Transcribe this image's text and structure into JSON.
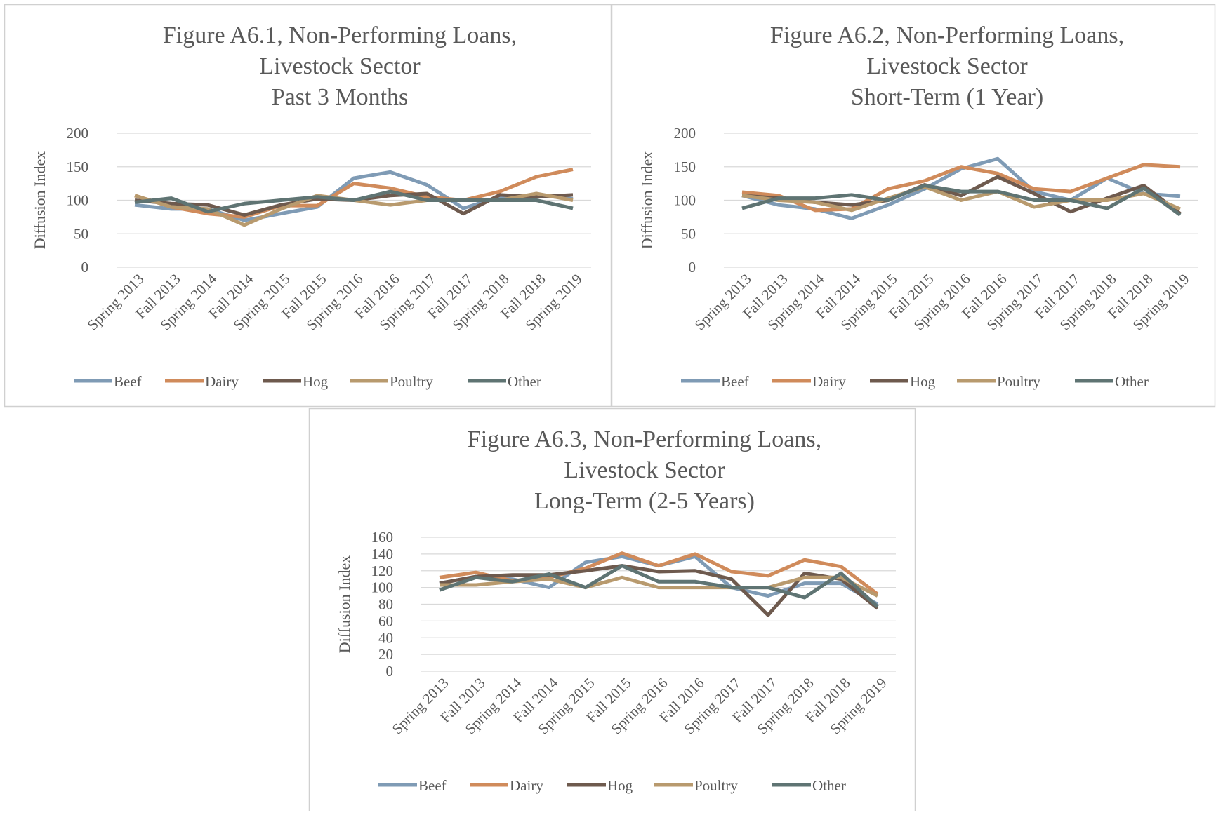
{
  "chart_data": [
    {
      "type": "line",
      "title": [
        "Figure A6.1, Non-Performing Loans,",
        "Livestock Sector",
        "Past 3 Months"
      ],
      "y_label": "Diffusion Index",
      "categories": [
        "Spring 2013",
        "Fall 2013",
        "Spring 2014",
        "Fall 2014",
        "Spring 2015",
        "Fall 2015",
        "Spring 2016",
        "Fall 2016",
        "Spring 2017",
        "Fall 2017",
        "Spring 2018",
        "Fall 2018",
        "Spring 2019"
      ],
      "ylim": [
        0,
        200
      ],
      "yticks": [
        0,
        50,
        100,
        150,
        200
      ],
      "grid": true,
      "series": [
        {
          "name": "Beef",
          "color": "#7f9bb5",
          "values": [
            93,
            87,
            87,
            70,
            80,
            90,
            133,
            142,
            123,
            88,
            105,
            108,
            102
          ]
        },
        {
          "name": "Dairy",
          "color": "#d08b5b",
          "values": [
            107,
            90,
            80,
            75,
            92,
            92,
            125,
            118,
            105,
            100,
            113,
            135,
            146
          ]
        },
        {
          "name": "Hog",
          "color": "#6e5a4e",
          "values": [
            100,
            95,
            93,
            78,
            93,
            102,
            100,
            107,
            110,
            80,
            108,
            105,
            108
          ]
        },
        {
          "name": "Poultry",
          "color": "#b89a6e",
          "values": [
            107,
            90,
            87,
            63,
            87,
            107,
            100,
            93,
            100,
            100,
            100,
            110,
            100
          ]
        },
        {
          "name": "Other",
          "color": "#5f7473",
          "values": [
            97,
            103,
            83,
            95,
            100,
            105,
            100,
            113,
            100,
            100,
            100,
            100,
            88
          ]
        }
      ]
    },
    {
      "type": "line",
      "title": [
        "Figure A6.2, Non-Performing Loans,",
        "Livestock Sector",
        "Short-Term (1 Year)"
      ],
      "y_label": "Diffusion Index",
      "categories": [
        "Spring 2013",
        "Fall 2013",
        "Spring 2014",
        "Fall 2014",
        "Spring 2015",
        "Fall 2015",
        "Spring 2016",
        "Fall 2016",
        "Spring 2017",
        "Fall 2017",
        "Spring 2018",
        "Fall 2018",
        "Spring 2019"
      ],
      "ylim": [
        0,
        200
      ],
      "yticks": [
        0,
        50,
        100,
        150,
        200
      ],
      "grid": true,
      "series": [
        {
          "name": "Beef",
          "color": "#7f9bb5",
          "values": [
            107,
            93,
            87,
            73,
            93,
            117,
            147,
            162,
            113,
            100,
            133,
            110,
            106
          ]
        },
        {
          "name": "Dairy",
          "color": "#d08b5b",
          "values": [
            112,
            107,
            85,
            87,
            117,
            129,
            150,
            140,
            117,
            113,
            133,
            153,
            150
          ]
        },
        {
          "name": "Hog",
          "color": "#6e5a4e",
          "values": [
            107,
            103,
            97,
            93,
            100,
            123,
            107,
            135,
            110,
            83,
            103,
            122,
            80
          ]
        },
        {
          "name": "Poultry",
          "color": "#b89a6e",
          "values": [
            107,
            100,
            97,
            85,
            103,
            120,
            100,
            113,
            90,
            100,
            100,
            110,
            87
          ]
        },
        {
          "name": "Other",
          "color": "#5f7473",
          "values": [
            88,
            103,
            103,
            108,
            100,
            122,
            113,
            113,
            100,
            100,
            88,
            118,
            78
          ]
        }
      ]
    },
    {
      "type": "line",
      "title": [
        "Figure A6.3, Non-Performing Loans,",
        "Livestock Sector",
        "Long-Term (2-5 Years)"
      ],
      "y_label": "Diffusion Index",
      "categories": [
        "Spring 2013",
        "Fall 2013",
        "Spring 2014",
        "Fall 2014",
        "Spring 2015",
        "Fall 2015",
        "Spring 2016",
        "Fall 2016",
        "Spring 2017",
        "Fall 2017",
        "Spring 2018",
        "Fall 2018",
        "Spring 2019"
      ],
      "ylim": [
        0,
        160
      ],
      "yticks": [
        0,
        20,
        40,
        60,
        80,
        100,
        120,
        140,
        160
      ],
      "grid": true,
      "series": [
        {
          "name": "Beef",
          "color": "#7f9bb5",
          "values": [
            105,
            113,
            110,
            100,
            130,
            137,
            126,
            137,
            100,
            90,
            105,
            105,
            80
          ]
        },
        {
          "name": "Dairy",
          "color": "#d08b5b",
          "values": [
            112,
            118,
            108,
            112,
            123,
            141,
            126,
            140,
            119,
            114,
            133,
            125,
            92
          ]
        },
        {
          "name": "Hog",
          "color": "#6e5a4e",
          "values": [
            105,
            113,
            115,
            115,
            120,
            126,
            119,
            120,
            110,
            67,
            117,
            110,
            75
          ]
        },
        {
          "name": "Poultry",
          "color": "#b89a6e",
          "values": [
            103,
            103,
            107,
            110,
            100,
            112,
            100,
            100,
            100,
            100,
            112,
            112,
            90
          ]
        },
        {
          "name": "Other",
          "color": "#5f7473",
          "values": [
            97,
            112,
            107,
            116,
            100,
            126,
            107,
            107,
            100,
            100,
            88,
            117,
            77
          ]
        }
      ]
    }
  ]
}
